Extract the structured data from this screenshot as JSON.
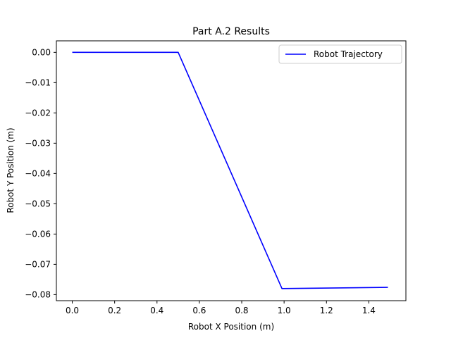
{
  "chart_data": {
    "type": "line",
    "title": "Part A.2 Results",
    "xlabel": "Robot X Position (m)",
    "ylabel": "Robot Y Position (m)",
    "xlim": [
      -0.075,
      1.575
    ],
    "ylim": [
      -0.082,
      0.0038
    ],
    "xticks": [
      0.0,
      0.2,
      0.4,
      0.6,
      0.8,
      1.0,
      1.2,
      1.4
    ],
    "xtick_labels": [
      "0.0",
      "0.2",
      "0.4",
      "0.6",
      "0.8",
      "1.0",
      "1.2",
      "1.4"
    ],
    "yticks": [
      0.0,
      -0.01,
      -0.02,
      -0.03,
      -0.04,
      -0.05,
      -0.06,
      -0.07,
      -0.08
    ],
    "ytick_labels": [
      "0.00",
      "−0.01",
      "−0.02",
      "−0.03",
      "−0.04",
      "−0.05",
      "−0.06",
      "−0.07",
      "−0.08"
    ],
    "grid": false,
    "legend_position": "top-right",
    "series": [
      {
        "name": "Robot Trajectory",
        "color": "#0000ff",
        "x": [
          0.0,
          0.5,
          0.99,
          1.49
        ],
        "y": [
          0.0,
          0.0,
          -0.078,
          -0.0776
        ]
      }
    ]
  }
}
